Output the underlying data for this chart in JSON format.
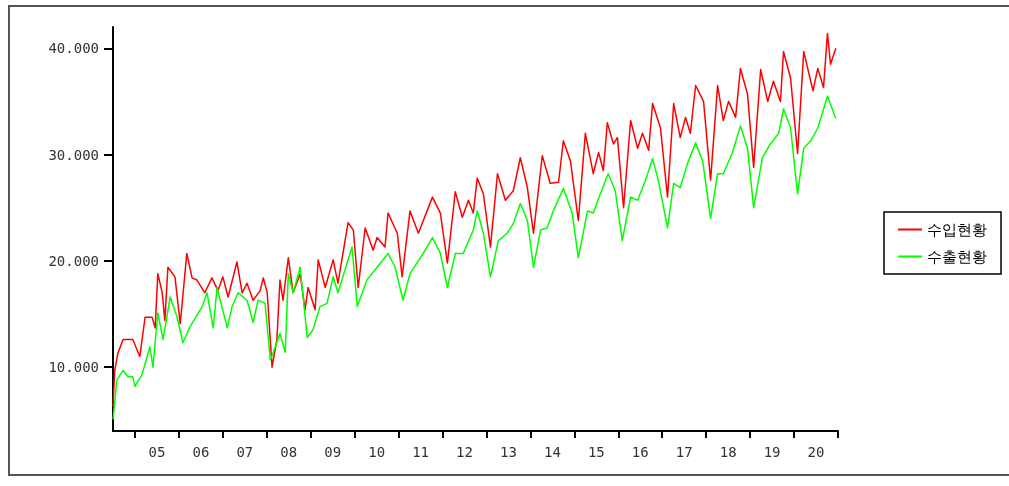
{
  "chart_data": {
    "type": "line",
    "xlim": [
      4,
      20.5
    ],
    "xticks": [
      {
        "value": 4.5,
        "label": null
      },
      {
        "value": 5,
        "label": "05"
      },
      {
        "value": 5.5,
        "label": null
      },
      {
        "value": 6,
        "label": "06"
      },
      {
        "value": 6.5,
        "label": null
      },
      {
        "value": 7,
        "label": "07"
      },
      {
        "value": 7.5,
        "label": null
      },
      {
        "value": 8,
        "label": "08"
      },
      {
        "value": 8.5,
        "label": null
      },
      {
        "value": 9,
        "label": "09"
      },
      {
        "value": 9.5,
        "label": null
      },
      {
        "value": 10,
        "label": "10"
      },
      {
        "value": 10.5,
        "label": null
      },
      {
        "value": 11,
        "label": "11"
      },
      {
        "value": 11.5,
        "label": null
      },
      {
        "value": 12,
        "label": "12"
      },
      {
        "value": 12.5,
        "label": null
      },
      {
        "value": 13,
        "label": "13"
      },
      {
        "value": 13.5,
        "label": null
      },
      {
        "value": 14,
        "label": "14"
      },
      {
        "value": 14.5,
        "label": null
      },
      {
        "value": 15,
        "label": "15"
      },
      {
        "value": 15.5,
        "label": null
      },
      {
        "value": 16,
        "label": "16"
      },
      {
        "value": 16.5,
        "label": null
      },
      {
        "value": 17,
        "label": "17"
      },
      {
        "value": 17.5,
        "label": null
      },
      {
        "value": 18,
        "label": "18"
      },
      {
        "value": 18.5,
        "label": null
      },
      {
        "value": 19,
        "label": "19"
      },
      {
        "value": 19.5,
        "label": null
      },
      {
        "value": 20,
        "label": "20"
      },
      {
        "value": 20.5,
        "label": null
      }
    ],
    "ylim": [
      4000,
      42000
    ],
    "yticks": [
      {
        "value": 10000,
        "label": "10.000"
      },
      {
        "value": 20000,
        "label": "20.000"
      },
      {
        "value": 30000,
        "label": "30.000"
      },
      {
        "value": 40000,
        "label": "40.000"
      }
    ],
    "grid": false,
    "legend": "right",
    "marker": "none",
    "line_style": "solid",
    "series": [
      {
        "name": "수입현황",
        "color": "#ff0000",
        "x": [
          4.0,
          4.04,
          4.11,
          4.23,
          4.45,
          4.61,
          4.73,
          4.89,
          4.96,
          5.02,
          5.12,
          5.18,
          5.25,
          5.41,
          5.53,
          5.68,
          5.8,
          5.91,
          6.09,
          6.25,
          6.39,
          6.5,
          6.62,
          6.82,
          6.94,
          7.05,
          7.19,
          7.35,
          7.42,
          7.51,
          7.62,
          7.73,
          7.8,
          7.87,
          7.99,
          8.1,
          8.26,
          8.37,
          8.44,
          8.6,
          8.67,
          8.83,
          9.01,
          9.12,
          9.35,
          9.47,
          9.58,
          9.74,
          9.92,
          10.01,
          10.19,
          10.26,
          10.47,
          10.58,
          10.76,
          10.95,
          11.27,
          11.45,
          11.61,
          11.79,
          11.95,
          12.09,
          12.2,
          12.29,
          12.43,
          12.59,
          12.75,
          12.93,
          13.11,
          13.27,
          13.43,
          13.57,
          13.77,
          13.95,
          14.14,
          14.25,
          14.41,
          14.59,
          14.75,
          14.93,
          15.05,
          15.16,
          15.25,
          15.39,
          15.48,
          15.62,
          15.78,
          15.94,
          16.05,
          16.19,
          16.28,
          16.46,
          16.62,
          16.76,
          16.91,
          17.03,
          17.14,
          17.26,
          17.44,
          17.6,
          17.76,
          17.89,
          18.01,
          18.17,
          18.28,
          18.44,
          18.58,
          18.74,
          18.9,
          19.03,
          19.19,
          19.26,
          19.42,
          19.58,
          19.72,
          19.93,
          20.04,
          20.17,
          20.26,
          20.33,
          20.45
        ],
        "values": [
          6300,
          9700,
          11300,
          12600,
          12600,
          11000,
          14700,
          14700,
          13700,
          18800,
          17000,
          14400,
          19400,
          18500,
          14100,
          20700,
          18400,
          18200,
          17000,
          18400,
          17200,
          18500,
          16600,
          19900,
          17000,
          17900,
          16300,
          17200,
          18400,
          17000,
          10000,
          12600,
          18200,
          16300,
          20300,
          17000,
          18800,
          15400,
          17500,
          15400,
          20100,
          17500,
          20100,
          17900,
          23600,
          22900,
          17500,
          23100,
          21000,
          22200,
          21300,
          24500,
          22600,
          18500,
          24700,
          22600,
          26000,
          24500,
          19800,
          26500,
          24100,
          25700,
          24500,
          27800,
          26300,
          21300,
          28200,
          25700,
          26600,
          29700,
          26900,
          22600,
          29900,
          27300,
          27400,
          31300,
          29400,
          23800,
          32000,
          28200,
          30200,
          28500,
          33000,
          31000,
          31600,
          25000,
          33200,
          30600,
          32000,
          30400,
          34800,
          32500,
          26000,
          34800,
          31600,
          33500,
          32000,
          36500,
          35000,
          27600,
          36500,
          33200,
          35000,
          33500,
          38100,
          35700,
          28800,
          38000,
          35000,
          36900,
          35000,
          39700,
          37200,
          30100,
          39700,
          36000,
          38100,
          36300,
          41400,
          38500,
          40000
        ]
      },
      {
        "name": "수출현황",
        "color": "#00ff00",
        "x": [
          4.0,
          4.09,
          4.23,
          4.34,
          4.45,
          4.5,
          4.66,
          4.84,
          4.91,
          5.02,
          5.14,
          5.3,
          5.46,
          5.59,
          5.75,
          6.03,
          6.14,
          6.28,
          6.37,
          6.6,
          6.71,
          6.85,
          7.05,
          7.19,
          7.3,
          7.46,
          7.58,
          7.64,
          7.8,
          7.92,
          7.99,
          8.1,
          8.26,
          8.42,
          8.55,
          8.71,
          8.87,
          9.01,
          9.12,
          9.44,
          9.56,
          9.78,
          10.01,
          10.26,
          10.42,
          10.6,
          10.76,
          11.06,
          11.27,
          11.45,
          11.61,
          11.79,
          11.97,
          12.2,
          12.29,
          12.43,
          12.59,
          12.77,
          12.97,
          13.11,
          13.27,
          13.43,
          13.57,
          13.73,
          13.88,
          14.02,
          14.25,
          14.45,
          14.59,
          14.8,
          14.93,
          15.09,
          15.27,
          15.43,
          15.59,
          15.78,
          15.94,
          16.12,
          16.28,
          16.41,
          16.62,
          16.76,
          16.91,
          17.07,
          17.26,
          17.42,
          17.6,
          17.76,
          17.89,
          18.09,
          18.28,
          18.44,
          18.58,
          18.78,
          18.96,
          19.15,
          19.26,
          19.42,
          19.58,
          19.72,
          19.88,
          20.04,
          20.26,
          20.45
        ],
        "values": [
          5100,
          8800,
          9700,
          9100,
          9100,
          8200,
          9300,
          11900,
          10000,
          15100,
          12600,
          16600,
          14700,
          12300,
          13800,
          15700,
          17000,
          13700,
          17500,
          13700,
          15700,
          17000,
          16300,
          14200,
          16300,
          16000,
          10700,
          11300,
          13200,
          11400,
          18800,
          17000,
          19400,
          12800,
          13500,
          15700,
          16000,
          18500,
          17000,
          21300,
          15700,
          18200,
          19400,
          20700,
          19400,
          16300,
          18800,
          20700,
          22200,
          20700,
          17500,
          20700,
          20700,
          22900,
          24700,
          22600,
          18500,
          21900,
          22600,
          23500,
          25400,
          23800,
          19400,
          22900,
          23100,
          24700,
          26800,
          24500,
          20300,
          24700,
          24500,
          26300,
          28200,
          26600,
          21900,
          26000,
          25700,
          27600,
          29600,
          27600,
          23100,
          27300,
          26900,
          29100,
          31100,
          29400,
          24000,
          28200,
          28200,
          30100,
          32700,
          30600,
          25000,
          29700,
          31000,
          32000,
          34300,
          32500,
          26300,
          30600,
          31300,
          32500,
          35500,
          33400
        ]
      }
    ]
  }
}
